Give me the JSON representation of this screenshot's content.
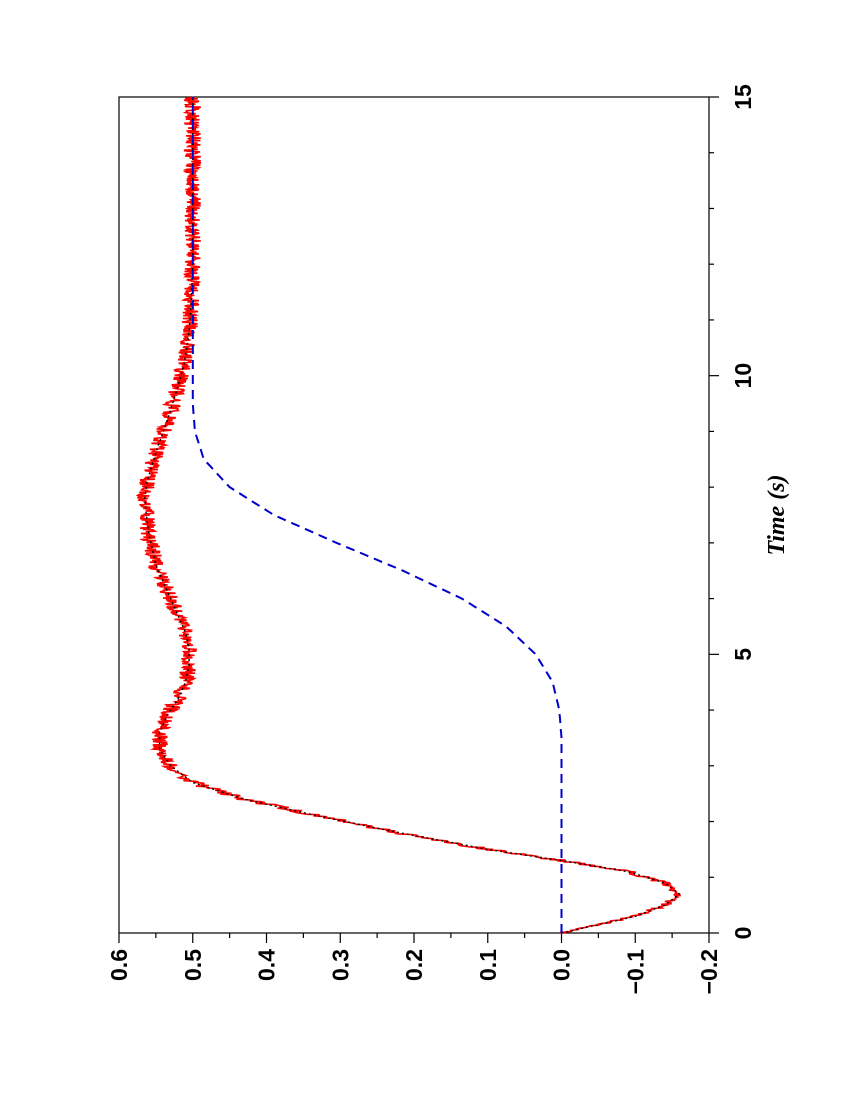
{
  "chart_data": {
    "type": "line",
    "orientation": "rotated-90-clockwise",
    "title": "",
    "xlabel": "Time (s)",
    "ylabel": "",
    "xlim": [
      0,
      15
    ],
    "ylim": [
      -0.2,
      0.6
    ],
    "x_ticks": [
      0,
      5,
      10,
      15
    ],
    "x_tick_labels": [
      "0",
      "5",
      "10",
      "15"
    ],
    "y_ticks": [
      -0.2,
      -0.1,
      0.0,
      0.1,
      0.2,
      0.3,
      0.4,
      0.5,
      0.6
    ],
    "y_tick_labels": [
      "−0.2",
      "−0.1",
      "0.0",
      "0.1",
      "0.2",
      "0.3",
      "0.4",
      "0.5",
      "0.6"
    ],
    "grid": false,
    "legend": "none",
    "series": [
      {
        "style": "noisy",
        "color": "#ff0000",
        "x": [
          0,
          0.3,
          0.5,
          0.7,
          0.9,
          1.1,
          1.3,
          1.5,
          1.8,
          2.1,
          2.4,
          2.7,
          3.0,
          3.3,
          3.6,
          3.9,
          4.2,
          4.5,
          4.8,
          5.1,
          5.4,
          5.7,
          6.0,
          6.3,
          6.6,
          6.9,
          7.2,
          7.5,
          7.8,
          8.1,
          8.4,
          8.7,
          9.0,
          9.3,
          9.6,
          9.9,
          10.2,
          10.5,
          10.8,
          11.1,
          11.4,
          11.7,
          12.0,
          12.5,
          13.0,
          13.5,
          14.0,
          14.5,
          15.0
        ],
        "y": [
          0.0,
          -0.1,
          -0.14,
          -0.16,
          -0.14,
          -0.09,
          0.0,
          0.1,
          0.22,
          0.33,
          0.43,
          0.5,
          0.53,
          0.545,
          0.545,
          0.535,
          0.52,
          0.51,
          0.505,
          0.505,
          0.51,
          0.52,
          0.53,
          0.54,
          0.55,
          0.555,
          0.56,
          0.563,
          0.565,
          0.562,
          0.555,
          0.548,
          0.54,
          0.532,
          0.525,
          0.518,
          0.512,
          0.508,
          0.505,
          0.503,
          0.502,
          0.501,
          0.5,
          0.5,
          0.5,
          0.5,
          0.5,
          0.5,
          0.5
        ]
      },
      {
        "style": "dotted",
        "color": "#000000",
        "x": [
          0,
          0.3,
          0.5,
          0.7,
          0.9,
          1.1,
          1.3,
          1.5,
          1.8,
          2.1,
          2.4,
          2.7,
          3.0,
          3.3,
          3.6,
          3.9,
          4.2,
          4.5,
          4.8,
          5.1,
          5.4,
          5.7,
          6.0,
          6.3,
          6.6,
          6.9,
          7.2,
          7.5,
          7.8,
          8.1,
          8.4,
          8.7,
          9.0,
          9.3,
          9.6,
          9.9,
          10.2,
          10.5,
          10.8,
          11.1,
          11.4,
          11.7,
          12.0,
          12.5,
          13.0,
          13.5,
          14.0,
          14.5,
          15.0
        ],
        "y": [
          0.0,
          -0.1,
          -0.14,
          -0.16,
          -0.14,
          -0.09,
          0.0,
          0.1,
          0.22,
          0.33,
          0.43,
          0.5,
          0.53,
          0.545,
          0.545,
          0.535,
          0.52,
          0.51,
          0.505,
          0.505,
          0.51,
          0.52,
          0.53,
          0.54,
          0.55,
          0.555,
          0.56,
          0.563,
          0.565,
          0.562,
          0.555,
          0.548,
          0.54,
          0.532,
          0.525,
          0.518,
          0.512,
          0.508,
          0.505,
          0.503,
          0.502,
          0.501,
          0.5,
          0.5,
          0.5,
          0.5,
          0.5,
          0.5,
          0.5
        ]
      },
      {
        "style": "dashed",
        "color": "#0000cc",
        "x": [
          0,
          1,
          2,
          3,
          3.5,
          4.0,
          4.5,
          5.0,
          5.5,
          6.0,
          6.5,
          7.0,
          7.5,
          8.0,
          8.5,
          9.0,
          9.5,
          10.0,
          11,
          12,
          13,
          14,
          15
        ],
        "y": [
          0.0,
          0.0,
          0.0,
          0.0,
          0.0,
          0.003,
          0.012,
          0.035,
          0.075,
          0.135,
          0.215,
          0.305,
          0.39,
          0.45,
          0.485,
          0.497,
          0.5,
          0.5,
          0.5,
          0.5,
          0.5,
          0.5,
          0.5
        ]
      }
    ]
  }
}
